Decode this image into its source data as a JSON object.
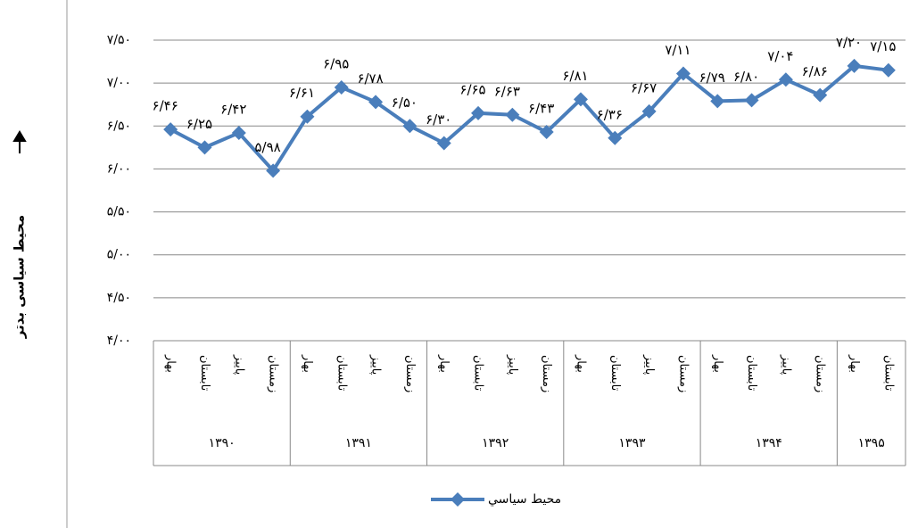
{
  "chart_data": {
    "type": "line",
    "y_label": "محیط سیاسی بدتر",
    "groups": [
      {
        "label": "۱۳۹۰",
        "categories": [
          "بهار",
          "تابستان",
          "پاییز",
          "زمستان"
        ]
      },
      {
        "label": "۱۳۹۱",
        "categories": [
          "بهار",
          "تابستان",
          "پاییز",
          "زمستان"
        ]
      },
      {
        "label": "۱۳۹۲",
        "categories": [
          "بهار",
          "تابستان",
          "پاییز",
          "زمستان"
        ]
      },
      {
        "label": "۱۳۹۳",
        "categories": [
          "بهار",
          "تابستان",
          "پاییز",
          "زمستان"
        ]
      },
      {
        "label": "۱۳۹۴",
        "categories": [
          "بهار",
          "تابستان",
          "پاییز",
          "زمستان"
        ]
      },
      {
        "label": "۱۳۹۵",
        "categories": [
          "بهار",
          "تابستان"
        ]
      }
    ],
    "series": [
      {
        "name": "محیط سیاسي",
        "color": "#4a7ebb",
        "values": [
          6.46,
          6.25,
          6.42,
          5.98,
          6.61,
          6.95,
          6.78,
          6.5,
          6.3,
          6.65,
          6.63,
          6.43,
          6.81,
          6.36,
          6.67,
          7.11,
          6.79,
          6.8,
          7.04,
          6.86,
          7.2,
          7.15
        ],
        "value_labels": [
          "۶/۴۶",
          "۶/۲۵",
          "۶/۴۲",
          "۵/۹۸",
          "۶/۶۱",
          "۶/۹۵",
          "۶/۷۸",
          "۶/۵۰",
          "۶/۳۰",
          "۶/۶۵",
          "۶/۶۳",
          "۶/۴۳",
          "۶/۸۱",
          "۶/۳۶",
          "۶/۶۷",
          "۷/۱۱",
          "۶/۷۹",
          "۶/۸۰",
          "۷/۰۴",
          "۶/۸۶",
          "۷/۲۰",
          "۷/۱۵"
        ]
      }
    ],
    "ylim": [
      4,
      7.5
    ],
    "yticks": [
      {
        "value": 4,
        "label": "۴/۰۰"
      },
      {
        "value": 4.5,
        "label": "۴/۵۰"
      },
      {
        "value": 5,
        "label": "۵/۰۰"
      },
      {
        "value": 5.5,
        "label": "۵/۵۰"
      },
      {
        "value": 6,
        "label": "۶/۰۰"
      },
      {
        "value": 6.5,
        "label": "۶/۵۰"
      },
      {
        "value": 7,
        "label": "۷/۰۰"
      },
      {
        "value": 7.5,
        "label": "۷/۵۰"
      }
    ],
    "grid": true
  }
}
